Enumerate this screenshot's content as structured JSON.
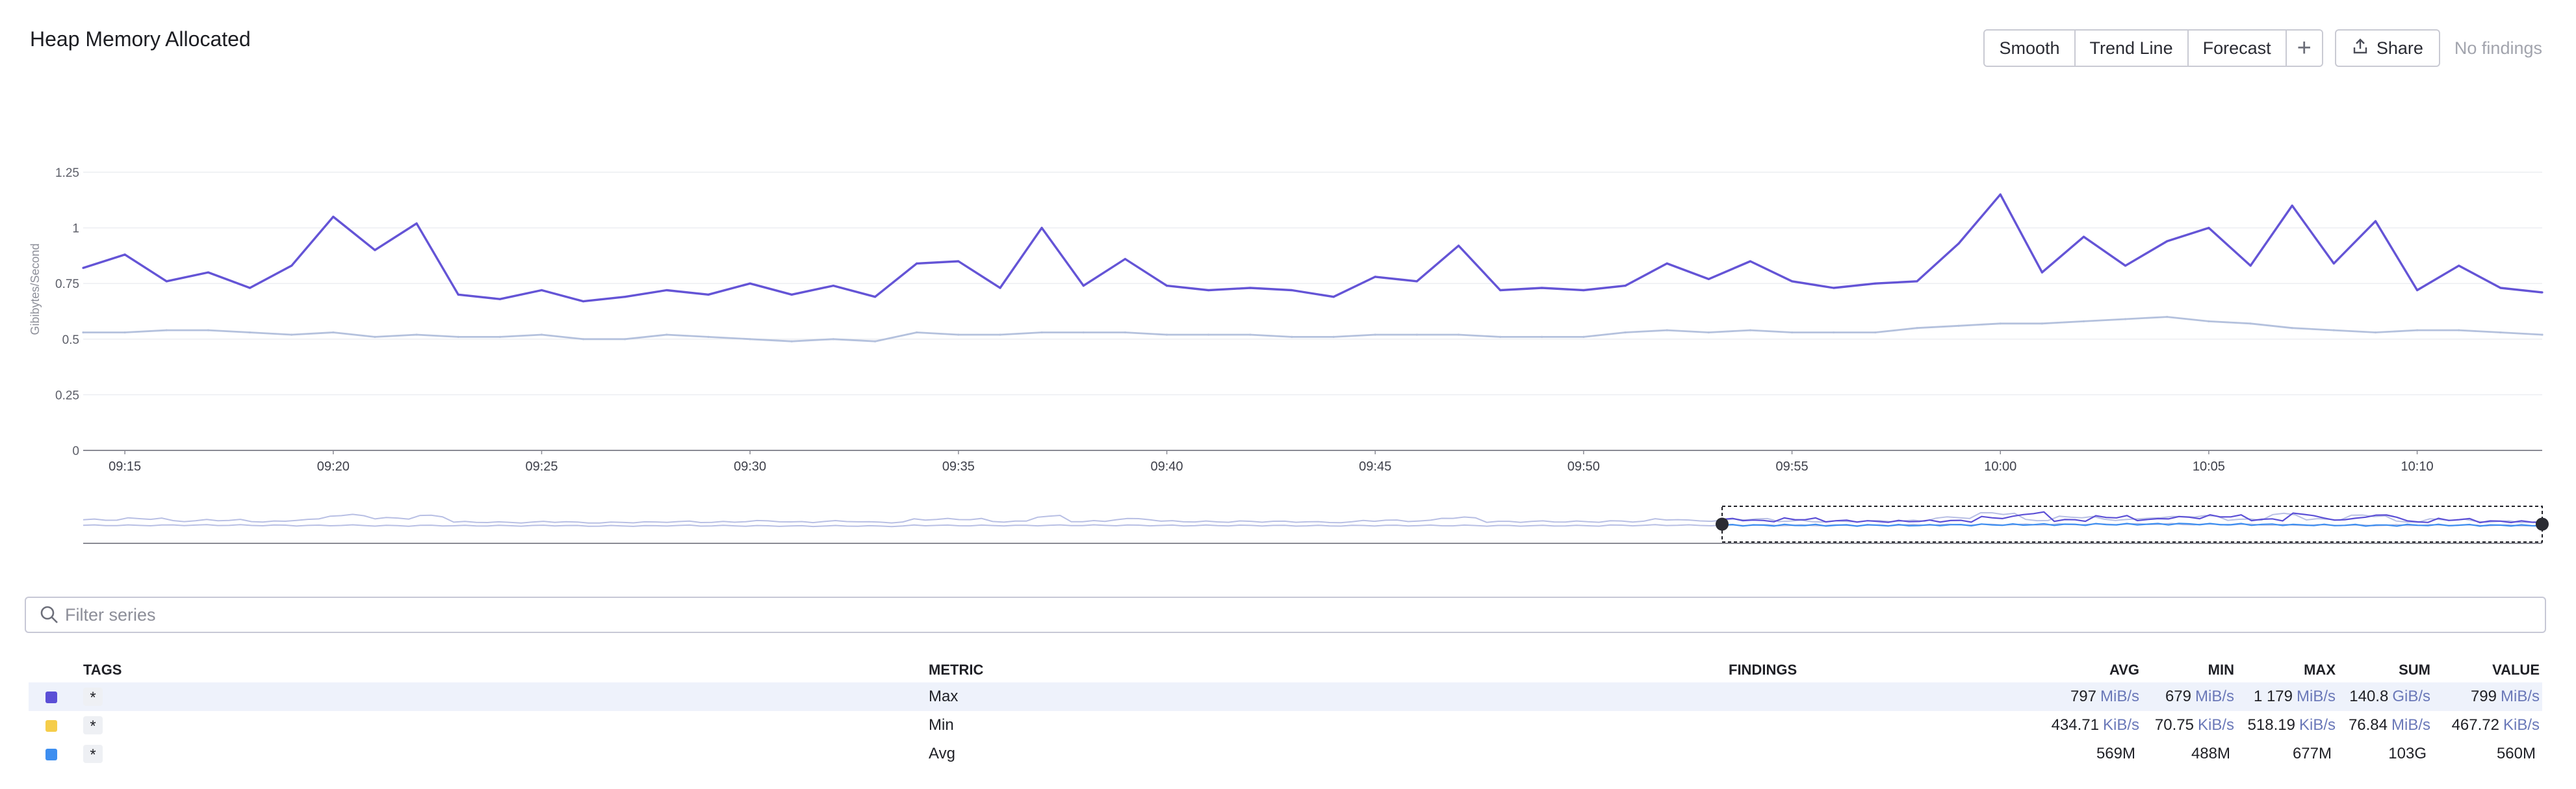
{
  "widget": {
    "title": "Heap Memory Allocated"
  },
  "toolbar": {
    "smooth_label": "Smooth",
    "trend_label": "Trend Line",
    "forecast_label": "Forecast",
    "add_label": "+",
    "share_label": "Share",
    "findings_label": "No findings"
  },
  "chart_data": {
    "type": "line",
    "ylabel": "Gibibytes/Second",
    "y_ticks": [
      "0",
      "0.25",
      "0.5",
      "0.75",
      "1",
      "1.25"
    ],
    "ylim": [
      0,
      1.25
    ],
    "x_ticks": [
      "09:15",
      "09:20",
      "09:25",
      "09:30",
      "09:35",
      "09:40",
      "09:45",
      "09:50",
      "09:55",
      "10:00",
      "10:05",
      "10:10"
    ],
    "x_start": "09:14",
    "x_end": "10:13",
    "grid": true,
    "series": [
      {
        "name": "Max",
        "color": "#6454d6",
        "x": [
          "09:14",
          "09:15",
          "09:16",
          "09:17",
          "09:18",
          "09:19",
          "09:20",
          "09:21",
          "09:22",
          "09:23",
          "09:24",
          "09:25",
          "09:26",
          "09:27",
          "09:28",
          "09:29",
          "09:30",
          "09:31",
          "09:32",
          "09:33",
          "09:34",
          "09:35",
          "09:36",
          "09:37",
          "09:38",
          "09:39",
          "09:40",
          "09:41",
          "09:42",
          "09:43",
          "09:44",
          "09:45",
          "09:46",
          "09:47",
          "09:48",
          "09:49",
          "09:50",
          "09:51",
          "09:52",
          "09:53",
          "09:54",
          "09:55",
          "09:56",
          "09:57",
          "09:58",
          "09:59",
          "10:00",
          "10:01",
          "10:02",
          "10:03",
          "10:04",
          "10:05",
          "10:06",
          "10:07",
          "10:08",
          "10:09",
          "10:10",
          "10:11",
          "10:12",
          "10:13"
        ],
        "values": [
          0.82,
          0.88,
          0.76,
          0.8,
          0.73,
          0.83,
          1.05,
          0.9,
          1.02,
          0.7,
          0.68,
          0.72,
          0.67,
          0.69,
          0.72,
          0.7,
          0.75,
          0.7,
          0.74,
          0.69,
          0.84,
          0.85,
          0.73,
          1.0,
          0.74,
          0.86,
          0.74,
          0.72,
          0.73,
          0.72,
          0.69,
          0.78,
          0.76,
          0.92,
          0.72,
          0.73,
          0.72,
          0.74,
          0.84,
          0.77,
          0.85,
          0.76,
          0.73,
          0.75,
          0.76,
          0.93,
          1.15,
          0.8,
          0.96,
          0.83,
          0.94,
          1.0,
          0.83,
          1.1,
          0.84,
          1.03,
          0.72,
          0.83,
          0.73,
          0.71
        ]
      },
      {
        "name": "Min",
        "color": "#b4c1dd",
        "x": [
          "09:14",
          "09:15",
          "09:16",
          "09:17",
          "09:18",
          "09:19",
          "09:20",
          "09:21",
          "09:22",
          "09:23",
          "09:24",
          "09:25",
          "09:26",
          "09:27",
          "09:28",
          "09:29",
          "09:30",
          "09:31",
          "09:32",
          "09:33",
          "09:34",
          "09:35",
          "09:36",
          "09:37",
          "09:38",
          "09:39",
          "09:40",
          "09:41",
          "09:42",
          "09:43",
          "09:44",
          "09:45",
          "09:46",
          "09:47",
          "09:48",
          "09:49",
          "09:50",
          "09:51",
          "09:52",
          "09:53",
          "09:54",
          "09:55",
          "09:56",
          "09:57",
          "09:58",
          "09:59",
          "10:00",
          "10:01",
          "10:02",
          "10:03",
          "10:04",
          "10:05",
          "10:06",
          "10:07",
          "10:08",
          "10:09",
          "10:10",
          "10:11",
          "10:12",
          "10:13"
        ],
        "values": [
          0.53,
          0.53,
          0.54,
          0.54,
          0.53,
          0.52,
          0.53,
          0.51,
          0.52,
          0.51,
          0.51,
          0.52,
          0.5,
          0.5,
          0.52,
          0.51,
          0.5,
          0.49,
          0.5,
          0.49,
          0.53,
          0.52,
          0.52,
          0.53,
          0.53,
          0.53,
          0.52,
          0.52,
          0.52,
          0.51,
          0.51,
          0.52,
          0.52,
          0.52,
          0.51,
          0.51,
          0.51,
          0.53,
          0.54,
          0.53,
          0.54,
          0.53,
          0.53,
          0.53,
          0.55,
          0.56,
          0.57,
          0.57,
          0.58,
          0.59,
          0.6,
          0.58,
          0.57,
          0.55,
          0.54,
          0.53,
          0.54,
          0.54,
          0.53,
          0.52
        ]
      }
    ]
  },
  "filter": {
    "placeholder": "Filter series"
  },
  "legend": {
    "columns": {
      "tags": "TAGS",
      "metric": "METRIC",
      "findings": "FINDINGS",
      "avg": "AVG",
      "min": "MIN",
      "max": "MAX",
      "sum": "SUM",
      "value": "VALUE"
    },
    "rows": [
      {
        "color": "#5b4fd6",
        "tag": "*",
        "metric": "Max",
        "avg": "797",
        "avg_unit": "MiB/s",
        "min": "679",
        "min_unit": "MiB/s",
        "max": "1 179",
        "max_unit": "MiB/s",
        "sum": "140.8",
        "sum_unit": "GiB/s",
        "value": "799",
        "value_unit": "MiB/s"
      },
      {
        "color": "#f5cd4a",
        "tag": "*",
        "metric": "Min",
        "avg": "434.71",
        "avg_unit": "KiB/s",
        "min": "70.75",
        "min_unit": "KiB/s",
        "max": "518.19",
        "max_unit": "KiB/s",
        "sum": "76.84",
        "sum_unit": "MiB/s",
        "value": "467.72",
        "value_unit": "KiB/s"
      },
      {
        "color": "#3d8ef0",
        "tag": "*",
        "metric": "Avg",
        "avg": "569M",
        "avg_unit": "",
        "min": "488M",
        "min_unit": "",
        "max": "677M",
        "max_unit": "",
        "sum": "103G",
        "sum_unit": "",
        "value": "560M",
        "value_unit": ""
      }
    ]
  }
}
